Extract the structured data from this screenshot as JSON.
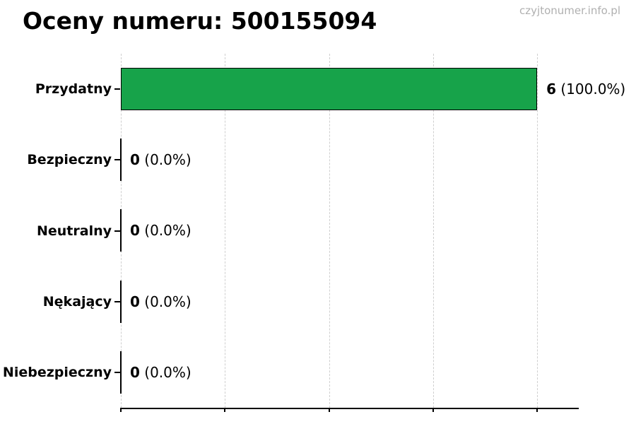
{
  "chart_data": {
    "type": "bar",
    "orientation": "horizontal",
    "title": "Oceny numeru: 500155094",
    "watermark": "czyjtonumer.info.pl",
    "categories": [
      "Przydatny",
      "Bezpieczny",
      "Neutralny",
      "Nękający",
      "Niebezpieczny"
    ],
    "values": [
      6,
      0,
      0,
      0,
      0
    ],
    "percent_labels": [
      "100.0%",
      "0.0%",
      "0.0%",
      "0.0%",
      "0.0%"
    ],
    "xlim": [
      0,
      6.6
    ],
    "xticks": [
      0,
      1.5,
      3,
      4.5,
      6
    ],
    "xtick_labels_shown": false,
    "grid": "vertical-dashed",
    "legend": "none",
    "colors": {
      "bar_fill": "#17a34a",
      "bar_edge": "#000000",
      "grid": "#cfcfcf",
      "axis": "#000000",
      "title": "#000000",
      "watermark": "#b0b0b0"
    }
  }
}
